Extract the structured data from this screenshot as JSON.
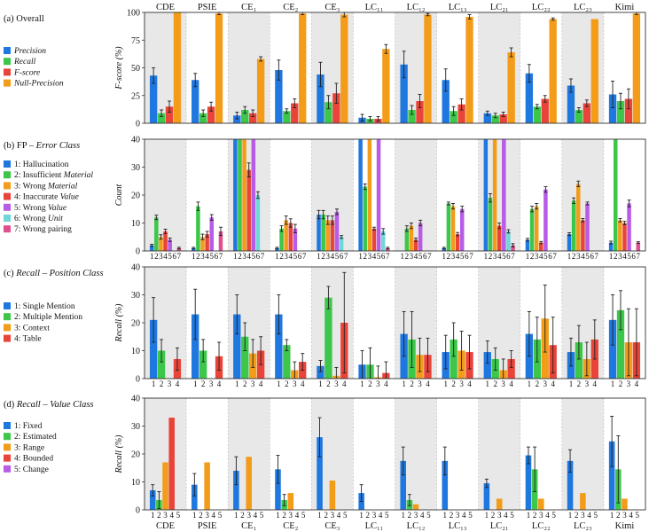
{
  "figure": {
    "top_models": [
      "CDE",
      "PSIE",
      "CE₁",
      "CE₂",
      "CE₃",
      "LC₁₁",
      "LC₁₂",
      "LC₁₃",
      "LC₂₁",
      "LC₂₂",
      "LC₂₃",
      "Kimi"
    ],
    "bottom_models": [
      "CDE",
      "PSIE",
      "CE₁",
      "CE₂",
      "CE₃",
      "LC₁₁",
      "LC₁₂",
      "LC₁₃",
      "LC₂₁",
      "LC₂₂",
      "LC₂₃",
      "Kimi"
    ]
  },
  "chart_data": [
    {
      "id": "a",
      "type": "bar",
      "panel_label_parts": [
        {
          "t": "(a) Overall",
          "i": false
        }
      ],
      "ylabel": "F-score (%)",
      "ylim": [
        0,
        100
      ],
      "yticks": [
        0,
        25,
        50,
        75,
        100
      ],
      "categories": [
        "CDE",
        "PSIE",
        "CE₁",
        "CE₂",
        "CE₃",
        "LC₁₁",
        "LC₁₂",
        "LC₁₃",
        "LC₂₁",
        "LC₂₂",
        "LC₂₃",
        "Kimi"
      ],
      "legend": [
        {
          "name": "Precision",
          "italic": true
        },
        {
          "name": "Recall",
          "italic": true
        },
        {
          "name": "F-score",
          "italic": true
        },
        {
          "name": "Null-Precision",
          "italic": true
        }
      ],
      "colors": [
        "#1f77e0",
        "#3cc64a",
        "#e8443a",
        "#f39c1a"
      ],
      "series_values": [
        [
          43,
          9,
          15,
          100
        ],
        [
          39,
          9,
          15,
          99
        ],
        [
          7,
          12,
          9,
          58
        ],
        [
          48,
          11,
          18,
          99
        ],
        [
          44,
          19,
          27,
          98
        ],
        [
          5,
          4,
          4,
          67
        ],
        [
          53,
          12,
          20,
          98
        ],
        [
          39,
          11,
          17,
          96
        ],
        [
          9,
          7,
          8,
          64
        ],
        [
          45,
          15,
          22,
          94
        ],
        [
          34,
          12,
          18,
          94
        ],
        [
          26,
          20,
          22,
          99
        ]
      ],
      "errors": [
        [
          7,
          3,
          5,
          0
        ],
        [
          6,
          3,
          4,
          1
        ],
        [
          3,
          3,
          3,
          2
        ],
        [
          9,
          2,
          4,
          1
        ],
        [
          11,
          6,
          9,
          2
        ],
        [
          3,
          2,
          2,
          4
        ],
        [
          12,
          4,
          6,
          1
        ],
        [
          10,
          4,
          5,
          2
        ],
        [
          2,
          2,
          2,
          4
        ],
        [
          8,
          2,
          3,
          1
        ],
        [
          6,
          2,
          3,
          0
        ],
        [
          12,
          7,
          9,
          1
        ]
      ],
      "axis_label_italic": true,
      "xtick_mode": "none"
    },
    {
      "id": "b",
      "type": "bar",
      "panel_label_parts": [
        {
          "t": "(b) FP – ",
          "i": false
        },
        {
          "t": "Error Class",
          "i": true
        }
      ],
      "ylabel": "Count",
      "ylim": [
        0,
        40
      ],
      "yticks": [
        0,
        10,
        20,
        30,
        40
      ],
      "categories": [
        "CDE",
        "PSIE",
        "CE₁",
        "CE₂",
        "CE₃",
        "LC₁₁",
        "LC₁₂",
        "LC₁₃",
        "LC₂₁",
        "LC₂₂",
        "LC₂₃",
        "Kimi"
      ],
      "legend": [
        {
          "parts": [
            {
              "t": "1: Hallucination",
              "i": false
            }
          ]
        },
        {
          "parts": [
            {
              "t": "2: Insufficient ",
              "i": false
            },
            {
              "t": "Material",
              "i": true
            }
          ]
        },
        {
          "parts": [
            {
              "t": "3: Wrong ",
              "i": false
            },
            {
              "t": "Material",
              "i": true
            }
          ]
        },
        {
          "parts": [
            {
              "t": "4: Inaccurate ",
              "i": false
            },
            {
              "t": "Value",
              "i": true
            }
          ]
        },
        {
          "parts": [
            {
              "t": "5: Wrong ",
              "i": false
            },
            {
              "t": "Value",
              "i": true
            }
          ]
        },
        {
          "parts": [
            {
              "t": "6: Wrong ",
              "i": false
            },
            {
              "t": "Unit",
              "i": true
            }
          ]
        },
        {
          "parts": [
            {
              "t": "7: Wrong pairing",
              "i": false
            }
          ]
        }
      ],
      "colors": [
        "#1f77e0",
        "#3cc64a",
        "#f39c1a",
        "#e8443a",
        "#b85ce6",
        "#6fd7d7",
        "#e0508f"
      ],
      "series_values": [
        [
          2,
          12,
          5,
          7,
          4,
          0,
          1
        ],
        [
          1,
          16,
          5,
          6,
          12,
          0,
          7
        ],
        [
          40,
          40,
          40,
          29,
          40,
          20,
          0
        ],
        [
          1,
          8,
          11,
          10,
          8,
          0,
          0
        ],
        [
          13,
          13,
          11,
          11,
          14,
          5,
          0
        ],
        [
          40,
          23,
          40,
          8,
          40,
          7,
          1
        ],
        [
          0,
          8,
          9,
          4,
          10,
          0,
          0
        ],
        [
          1,
          17,
          16,
          6,
          15,
          0,
          0
        ],
        [
          40,
          19,
          40,
          9,
          40,
          7,
          2
        ],
        [
          4,
          15,
          16,
          3,
          22,
          0,
          0
        ],
        [
          6,
          18,
          24,
          11,
          17,
          0,
          0
        ],
        [
          3,
          40,
          11,
          10,
          17,
          0,
          3
        ]
      ],
      "errors": [
        [
          0.4,
          0.8,
          0.8,
          0.8,
          0.6,
          0,
          0.3
        ],
        [
          0.3,
          1.5,
          1,
          1,
          1,
          0,
          1.5
        ],
        [
          0,
          0,
          0,
          2.5,
          0,
          1.2,
          0
        ],
        [
          0.3,
          1,
          1.5,
          1.5,
          1.5,
          0,
          0
        ],
        [
          1.5,
          1.5,
          1.5,
          1.5,
          1,
          0.5,
          0
        ],
        [
          0,
          1,
          0,
          0.5,
          0,
          1,
          0.3
        ],
        [
          0,
          1,
          1,
          0.6,
          1,
          0,
          0
        ],
        [
          0.3,
          0.5,
          1,
          0.6,
          1,
          0,
          0
        ],
        [
          0,
          1.5,
          0,
          1,
          0,
          0.6,
          0.6
        ],
        [
          0.5,
          1,
          1,
          0.4,
          1,
          0,
          0
        ],
        [
          0.5,
          1,
          1,
          0.6,
          0.5,
          0,
          0
        ],
        [
          0.5,
          0,
          0.6,
          0.6,
          1.2,
          0,
          0.3
        ]
      ],
      "axis_label_italic": true,
      "xtick_mode": "index",
      "xtick_labels": [
        "1",
        "2",
        "3",
        "4",
        "5",
        "6",
        "7"
      ]
    },
    {
      "id": "c",
      "type": "bar",
      "panel_label_parts": [
        {
          "t": "(c) ",
          "i": false
        },
        {
          "t": "Recall",
          "i": true
        },
        {
          "t": " – ",
          "i": false
        },
        {
          "t": "Position Class",
          "i": true
        }
      ],
      "ylabel": "Recall (%)",
      "ylim": [
        0,
        40
      ],
      "yticks": [
        0,
        10,
        20,
        30,
        40
      ],
      "categories": [
        "CDE",
        "PSIE",
        "CE₁",
        "CE₂",
        "CE₃",
        "LC₁₁",
        "LC₁₂",
        "LC₁₃",
        "LC₂₁",
        "LC₂₂",
        "LC₂₃",
        "Kimi"
      ],
      "legend": [
        {
          "parts": [
            {
              "t": "1: Single Mention",
              "i": false
            }
          ]
        },
        {
          "parts": [
            {
              "t": "2: Multiple Mention",
              "i": false
            }
          ]
        },
        {
          "parts": [
            {
              "t": "3: Context",
              "i": false
            }
          ]
        },
        {
          "parts": [
            {
              "t": "4: Table",
              "i": false
            }
          ]
        }
      ],
      "colors": [
        "#1f77e0",
        "#3cc64a",
        "#f39c1a",
        "#e8443a"
      ],
      "series_values": [
        [
          21,
          10,
          0,
          7
        ],
        [
          23,
          10,
          0,
          8
        ],
        [
          23,
          15,
          9,
          10
        ],
        [
          23,
          12,
          3,
          6
        ],
        [
          4.5,
          29,
          1,
          20
        ],
        [
          5,
          5,
          0.5,
          2
        ],
        [
          16,
          14,
          8.5,
          8.5
        ],
        [
          9.5,
          14,
          10,
          9.5
        ],
        [
          9.5,
          7,
          3,
          7
        ],
        [
          16,
          14,
          21.5,
          12
        ],
        [
          9.5,
          13,
          7,
          14
        ],
        [
          21,
          24.5,
          13,
          13
        ]
      ],
      "errors": [
        [
          8,
          4,
          0,
          4
        ],
        [
          9,
          4,
          0,
          5
        ],
        [
          7,
          5,
          5,
          5
        ],
        [
          7,
          2,
          3,
          3
        ],
        [
          2,
          4,
          3,
          18
        ],
        [
          5,
          6,
          4,
          4
        ],
        [
          8,
          10,
          6,
          6
        ],
        [
          6,
          6,
          7,
          6
        ],
        [
          4,
          4,
          4,
          3
        ],
        [
          8,
          8,
          12,
          10
        ],
        [
          5,
          6,
          6,
          7
        ],
        [
          9,
          7,
          12,
          12
        ]
      ],
      "axis_label_italic": true,
      "xtick_mode": "index",
      "xtick_labels": [
        "1",
        "2",
        "3",
        "4"
      ]
    },
    {
      "id": "d",
      "type": "bar",
      "panel_label_parts": [
        {
          "t": "(d) ",
          "i": false
        },
        {
          "t": "Recall",
          "i": true
        },
        {
          "t": " – ",
          "i": false
        },
        {
          "t": "Value Class",
          "i": true
        }
      ],
      "ylabel": "Recall (%)",
      "ylim": [
        0,
        40
      ],
      "yticks": [
        0,
        10,
        20,
        30,
        40
      ],
      "categories": [
        "CDE",
        "PSIE",
        "CE₁",
        "CE₂",
        "CE₃",
        "LC₁₁",
        "LC₁₂",
        "LC₁₃",
        "LC₂₁",
        "LC₂₂",
        "LC₂₃",
        "Kimi"
      ],
      "legend": [
        {
          "parts": [
            {
              "t": "1: Fixed",
              "i": false
            }
          ]
        },
        {
          "parts": [
            {
              "t": "2: Estimated",
              "i": false
            }
          ]
        },
        {
          "parts": [
            {
              "t": "3: Range",
              "i": false
            }
          ]
        },
        {
          "parts": [
            {
              "t": "4: Bounded",
              "i": false
            }
          ]
        },
        {
          "parts": [
            {
              "t": "5: Change",
              "i": false
            }
          ]
        }
      ],
      "colors": [
        "#1f77e0",
        "#3cc64a",
        "#f39c1a",
        "#e8443a",
        "#b85ce6"
      ],
      "series_values": [
        [
          7,
          3.5,
          17,
          33,
          0
        ],
        [
          9,
          0,
          17,
          0,
          0
        ],
        [
          14,
          0,
          19,
          0,
          0
        ],
        [
          14.5,
          3.5,
          6,
          0,
          0
        ],
        [
          26,
          0,
          10.5,
          0,
          0
        ],
        [
          6,
          0,
          0,
          0,
          0
        ],
        [
          17.5,
          3.5,
          2,
          0,
          0
        ],
        [
          17.5,
          0,
          0,
          0,
          0
        ],
        [
          9.5,
          0,
          4,
          0,
          0
        ],
        [
          19.5,
          14.5,
          4,
          0,
          0
        ],
        [
          17.5,
          0,
          6,
          0,
          0
        ],
        [
          24.5,
          14.5,
          4,
          0,
          0
        ]
      ],
      "errors": [
        [
          2,
          3,
          0,
          0,
          0
        ],
        [
          4,
          0,
          0,
          0,
          0
        ],
        [
          5,
          0,
          0,
          0,
          0
        ],
        [
          5,
          2,
          0,
          0,
          0
        ],
        [
          7,
          0,
          0,
          0,
          0
        ],
        [
          3,
          0,
          0,
          0,
          0
        ],
        [
          5,
          2,
          0,
          0,
          0
        ],
        [
          5,
          0,
          0,
          0,
          0
        ],
        [
          1.5,
          0,
          0,
          0,
          0
        ],
        [
          3,
          8,
          0,
          0,
          0
        ],
        [
          4,
          0,
          0,
          0,
          0
        ],
        [
          9,
          12,
          0,
          0,
          0
        ]
      ],
      "axis_label_italic": true,
      "xtick_mode": "index",
      "xtick_labels": [
        "1",
        "2",
        "3",
        "4",
        "5"
      ]
    }
  ]
}
